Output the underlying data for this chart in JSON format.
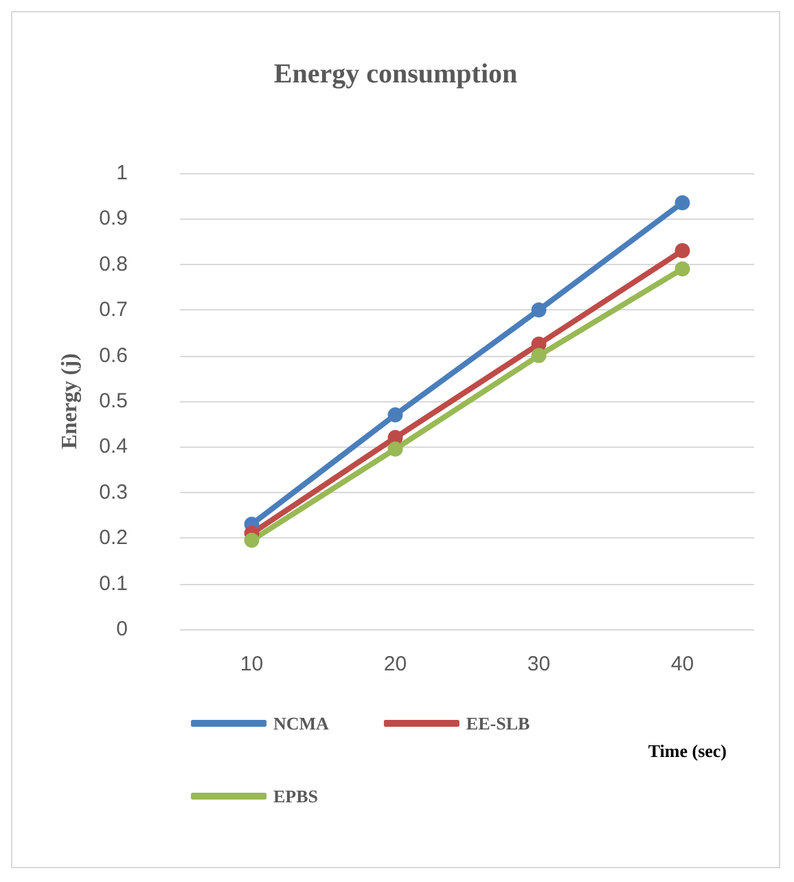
{
  "chart_data": {
    "type": "line",
    "title": "Energy consumption",
    "xlabel": "Time (sec)",
    "ylabel": "Energy (j)",
    "categories": [
      "10",
      "20",
      "30",
      "40"
    ],
    "series": [
      {
        "name": "NCMA",
        "color": "#4a7ebb",
        "values": [
          0.23,
          0.47,
          0.7,
          0.935
        ]
      },
      {
        "name": "EE-SLB",
        "color": "#be4b48",
        "values": [
          0.21,
          0.42,
          0.625,
          0.83
        ]
      },
      {
        "name": "EPBS",
        "color": "#98b954",
        "values": [
          0.195,
          0.395,
          0.6,
          0.79
        ]
      }
    ],
    "ylim": [
      0,
      1
    ],
    "yticks": [
      0,
      0.1,
      0.2,
      0.3,
      0.4,
      0.5,
      0.6,
      0.7,
      0.8,
      0.9,
      1
    ],
    "grid": "y",
    "legend": "bottom",
    "marker": "circle",
    "line_style": "solid"
  }
}
